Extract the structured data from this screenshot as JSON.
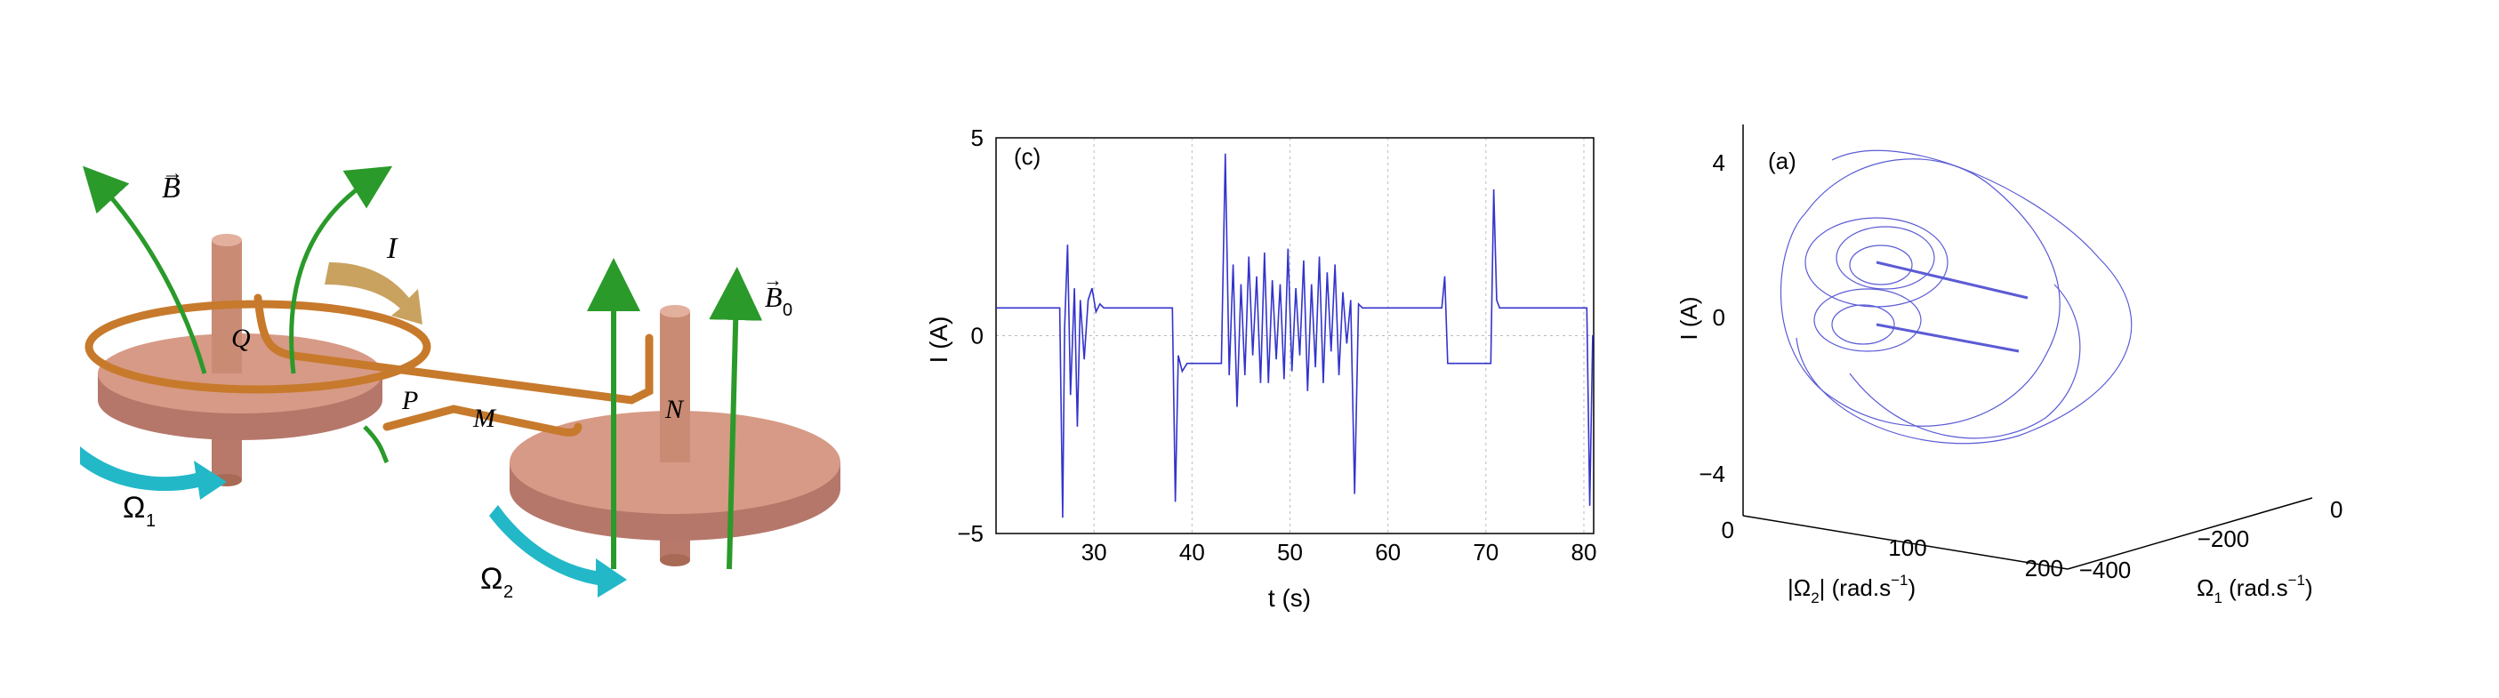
{
  "figure": {
    "schematic": {
      "labels": {
        "B": "B",
        "B0": "B",
        "B0_sub": "0",
        "I": "I",
        "Q": "Q",
        "P": "P",
        "M": "M",
        "N": "N",
        "Omega1": "Ω",
        "Omega1_sub": "1",
        "Omega2": "Ω",
        "Omega2_sub": "2"
      },
      "colors": {
        "copper": "#c98b74",
        "copper_dark": "#a86a55",
        "wire": "#c77a2c",
        "field": "#2a9a2a",
        "rotation_arrow": "#22b8c8",
        "current_arrow": "#c9a260"
      }
    },
    "chart_data": [
      {
        "type": "line",
        "panel_label": "(c)",
        "xlabel": "t (s)",
        "ylabel": "I (A)",
        "xlim": [
          20,
          81
        ],
        "ylim": [
          -5,
          5
        ],
        "xticks": [
          30,
          40,
          50,
          60,
          70,
          80
        ],
        "yticks": [
          -5,
          0,
          5
        ],
        "grid": true,
        "color": "#3333cc",
        "x": [
          20,
          26.5,
          26.8,
          27.0,
          27.3,
          27.6,
          28.0,
          28.3,
          28.6,
          29.0,
          29.4,
          29.8,
          30.2,
          30.6,
          31.0,
          32,
          38,
          38.3,
          38.6,
          39.0,
          39.5,
          40,
          43,
          43.4,
          43.8,
          44.2,
          44.6,
          45.0,
          45.4,
          45.8,
          46.2,
          46.6,
          47.0,
          47.4,
          47.8,
          48.2,
          48.6,
          49.0,
          49.4,
          49.8,
          50.2,
          50.6,
          51.0,
          51.4,
          51.8,
          52.2,
          52.6,
          53.0,
          53.4,
          53.8,
          54.2,
          54.6,
          55.0,
          55.4,
          55.8,
          56.2,
          56.6,
          57.0,
          57.4,
          58,
          65.5,
          65.8,
          66.1,
          66.5,
          67,
          70.5,
          70.8,
          71.1,
          71.4,
          72,
          80.3,
          80.6,
          80.9,
          81
        ],
        "y": [
          0.7,
          0.7,
          -4.6,
          0.2,
          2.3,
          -1.5,
          1.2,
          -2.3,
          0.9,
          -0.6,
          0.9,
          1.2,
          0.6,
          0.8,
          0.7,
          0.7,
          0.7,
          -4.2,
          -0.5,
          -0.9,
          -0.7,
          -0.7,
          -0.7,
          4.6,
          -1.0,
          1.8,
          -1.8,
          1.3,
          -1.0,
          2.0,
          -0.5,
          1.5,
          -1.2,
          2.1,
          -1.2,
          1.4,
          -0.6,
          1.3,
          -1.1,
          2.2,
          -0.9,
          1.2,
          -0.5,
          1.9,
          -1.4,
          1.3,
          -0.8,
          2.0,
          -1.2,
          1.6,
          -0.4,
          1.8,
          -1.0,
          1.1,
          -0.2,
          0.9,
          -4.0,
          0.8,
          0.7,
          0.7,
          0.7,
          1.5,
          -0.7,
          -0.7,
          -0.7,
          -0.7,
          3.7,
          0.9,
          0.7,
          0.7,
          0.7,
          -4.3,
          0.0,
          0.0
        ]
      },
      {
        "type": "line",
        "subtype": "3d-trajectory",
        "panel_label": "(a)",
        "zlabel": "I (A)",
        "xlabel_main": "|Ω",
        "xlabel_sub": "2",
        "xlabel_tail": "| (rad.s",
        "xlabel_sup": "−1",
        "xlabel_end": ")",
        "ylabel_main": "Ω",
        "ylabel_sub": "1",
        "ylabel_tail": " (rad.s",
        "ylabel_sup": "−1",
        "ylabel_end": ")",
        "zticks": [
          "4",
          "0",
          "−4"
        ],
        "xticks": [
          "0",
          "100",
          "200"
        ],
        "yticks": [
          "0",
          "−200",
          "−400"
        ],
        "color": "#3f3fd0"
      }
    ]
  }
}
